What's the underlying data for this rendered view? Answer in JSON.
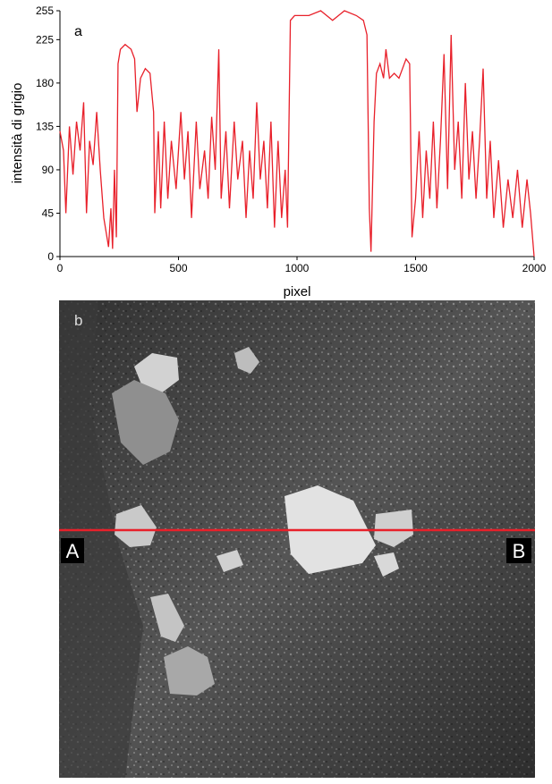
{
  "chart_data": {
    "type": "line",
    "panel_label": "a",
    "y_label": "intensità di grigio",
    "x_label": "pixel",
    "xlim": [
      0,
      2000
    ],
    "xticks": [
      0,
      500,
      1000,
      1500,
      2000
    ],
    "ylim": [
      0,
      255
    ],
    "yticks": [
      0,
      45,
      90,
      135,
      180,
      225,
      255
    ],
    "series": [
      {
        "color": "#e8202a",
        "x": [
          0,
          15,
          25,
          40,
          55,
          70,
          85,
          100,
          112,
          125,
          140,
          155,
          170,
          185,
          195,
          205,
          215,
          222,
          230,
          238,
          245,
          255,
          275,
          300,
          315,
          325,
          340,
          360,
          380,
          395,
          400,
          415,
          425,
          440,
          455,
          470,
          490,
          510,
          525,
          540,
          555,
          575,
          590,
          610,
          625,
          640,
          655,
          670,
          680,
          700,
          715,
          735,
          750,
          770,
          785,
          800,
          815,
          830,
          845,
          860,
          875,
          890,
          905,
          920,
          935,
          950,
          960,
          972,
          990,
          1050,
          1100,
          1150,
          1200,
          1250,
          1280,
          1295,
          1305,
          1312,
          1325,
          1335,
          1350,
          1365,
          1375,
          1390,
          1410,
          1430,
          1460,
          1475,
          1485,
          1500,
          1515,
          1530,
          1545,
          1560,
          1575,
          1590,
          1605,
          1620,
          1635,
          1650,
          1665,
          1680,
          1695,
          1710,
          1725,
          1740,
          1755,
          1770,
          1785,
          1800,
          1815,
          1830,
          1850,
          1870,
          1890,
          1910,
          1930,
          1950,
          1970,
          1985,
          2000
        ],
        "values": [
          130,
          110,
          45,
          135,
          85,
          140,
          110,
          160,
          45,
          120,
          95,
          150,
          90,
          40,
          25,
          10,
          50,
          8,
          90,
          20,
          200,
          215,
          220,
          215,
          205,
          150,
          185,
          195,
          190,
          150,
          45,
          130,
          50,
          140,
          60,
          120,
          70,
          150,
          80,
          130,
          40,
          140,
          70,
          110,
          60,
          145,
          90,
          215,
          60,
          130,
          50,
          140,
          80,
          120,
          40,
          110,
          60,
          160,
          80,
          120,
          50,
          140,
          30,
          120,
          40,
          90,
          30,
          245,
          250,
          250,
          255,
          245,
          255,
          250,
          245,
          230,
          50,
          5,
          140,
          190,
          200,
          185,
          215,
          185,
          190,
          185,
          205,
          200,
          20,
          60,
          130,
          40,
          110,
          60,
          140,
          50,
          120,
          210,
          70,
          230,
          90,
          140,
          60,
          180,
          80,
          130,
          60,
          120,
          195,
          60,
          120,
          40,
          100,
          30,
          80,
          40,
          90,
          30,
          80,
          45,
          0
        ]
      }
    ]
  },
  "photo": {
    "panel_label": "b",
    "left_marker": "A",
    "right_marker": "B"
  }
}
